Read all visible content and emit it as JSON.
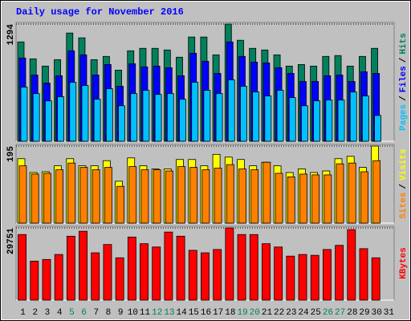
{
  "chart_data": [
    {
      "type": "bar",
      "title": "Daily usage for November 2016",
      "ylim": [
        0,
        1294
      ],
      "yticks": [
        1294
      ],
      "legend_separator": "/",
      "series": [
        {
          "name": "Hits",
          "color": "#00805c",
          "values": [
            1097,
            910,
            830,
            901,
            1195,
            1142,
            901,
            937,
            785,
            999,
            1026,
            1026,
            1008,
            928,
            1151,
            1151,
            954,
            1294,
            1115,
            1026,
            1008,
            954,
            830,
            847,
            830,
            937,
            946,
            830,
            937,
            1026,
            null
          ]
        },
        {
          "name": "Files",
          "color": "#0000ff",
          "values": [
            919,
            731,
            642,
            723,
            999,
            954,
            731,
            847,
            607,
            856,
            821,
            830,
            812,
            723,
            972,
            883,
            749,
            1097,
            937,
            874,
            865,
            812,
            749,
            660,
            660,
            723,
            731,
            660,
            767,
            749,
            null
          ]
        },
        {
          "name": "Pages",
          "color": "#00c0ff",
          "values": [
            598,
            526,
            446,
            491,
            651,
            615,
            464,
            580,
            392,
            526,
            562,
            517,
            526,
            464,
            651,
            562,
            526,
            678,
            607,
            544,
            500,
            562,
            482,
            392,
            446,
            455,
            455,
            544,
            500,
            285,
            null
          ]
        }
      ]
    },
    {
      "type": "bar",
      "ylim": [
        0,
        195
      ],
      "yticks": [
        195
      ],
      "legend_separator": "/",
      "series": [
        {
          "name": "Visits",
          "color": "#ffff00",
          "values": [
            163,
            128,
            130,
            145,
            163,
            145,
            145,
            158,
            106,
            165,
            145,
            137,
            137,
            161,
            161,
            145,
            174,
            167,
            161,
            145,
            154,
            145,
            128,
            137,
            128,
            132,
            163,
            169,
            141,
            195,
            null
          ]
        },
        {
          "name": "Sites",
          "color": "#ff8000",
          "values": [
            145,
            124,
            126,
            135,
            152,
            141,
            135,
            141,
            93,
            143,
            135,
            135,
            132,
            143,
            141,
            135,
            139,
            148,
            137,
            135,
            154,
            126,
            117,
            124,
            122,
            122,
            150,
            152,
            130,
            158,
            null
          ]
        }
      ]
    },
    {
      "type": "bar",
      "ylim": [
        0,
        29751
      ],
      "yticks": [
        29751
      ],
      "categories": [
        "1",
        "2",
        "3",
        "4",
        "5",
        "6",
        "7",
        "8",
        "9",
        "10",
        "11",
        "12",
        "13",
        "14",
        "15",
        "16",
        "17",
        "18",
        "19",
        "20",
        "21",
        "22",
        "23",
        "24",
        "25",
        "26",
        "27",
        "28",
        "29",
        "30",
        "31"
      ],
      "weekends": [
        4,
        5,
        11,
        12,
        18,
        19,
        25,
        26
      ],
      "weekend_color": "#00805c",
      "series": [
        {
          "name": "KBytes",
          "color": "#ff0000",
          "values": [
            27018,
            16074,
            16758,
            18810,
            26334,
            28386,
            19494,
            22914,
            17442,
            25992,
            23256,
            21888,
            28044,
            26334,
            20520,
            19494,
            20862,
            29751,
            27018,
            27018,
            23256,
            21888,
            18126,
            18810,
            18468,
            20862,
            22572,
            29070,
            21204,
            17442,
            null
          ]
        }
      ]
    }
  ]
}
